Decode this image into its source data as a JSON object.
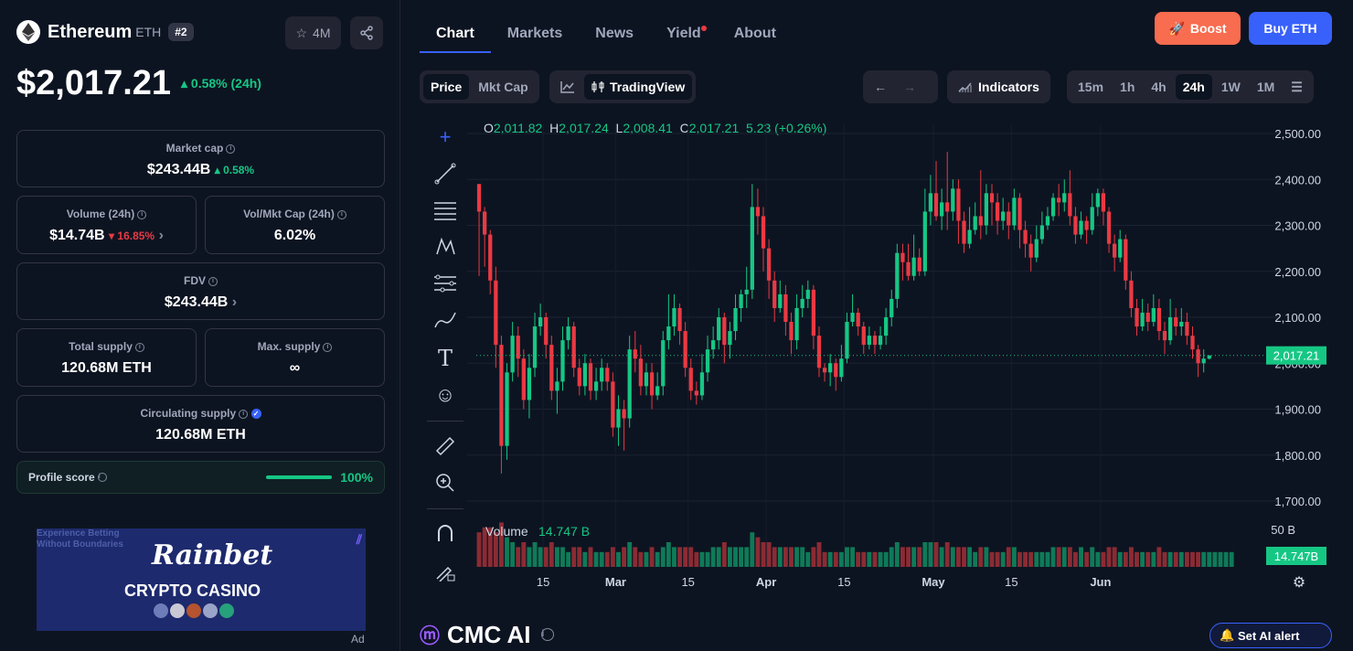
{
  "coin": {
    "name": "Ethereum",
    "symbol": "ETH",
    "rank": "#2",
    "watchlist_count": "4M",
    "price": "$2,017.21",
    "change_24h": "0.58% (24h)"
  },
  "stats": {
    "market_cap_label": "Market cap",
    "market_cap_value": "$243.44B",
    "market_cap_change": "0.58%",
    "volume_label": "Volume (24h)",
    "volume_value": "$14.74B",
    "volume_change": "16.85%",
    "vol_mkt_label": "Vol/Mkt Cap (24h)",
    "vol_mkt_value": "6.02%",
    "fdv_label": "FDV",
    "fdv_value": "$243.44B",
    "total_supply_label": "Total supply",
    "total_supply_value": "120.68M ETH",
    "max_supply_label": "Max. supply",
    "max_supply_value": "∞",
    "circ_supply_label": "Circulating supply",
    "circ_supply_value": "120.68M ETH",
    "profile_label": "Profile score",
    "profile_value": "100%",
    "profile_fraction": 1.0
  },
  "ad": {
    "line1": "Experience Betting Without Boundaries",
    "brand": "Rainbet",
    "tagline": "CRYPTO CASINO",
    "ad_label": "Ad"
  },
  "nav": {
    "tabs": [
      "Chart",
      "Markets",
      "News",
      "Yield",
      "About"
    ],
    "boost_label": "Boost",
    "buy_label": "Buy ETH"
  },
  "toolbar": {
    "price_label": "Price",
    "mktcap_label": "Mkt Cap",
    "tradingview_label": "TradingView",
    "indicators_label": "Indicators",
    "timeframes": [
      "15m",
      "1h",
      "4h",
      "24h",
      "1W",
      "1M"
    ],
    "active_timeframe": "24h"
  },
  "ohlc": {
    "o_label": "O",
    "o_value": "2,011.82",
    "h_label": "H",
    "h_value": "2,017.24",
    "l_label": "L",
    "l_value": "2,008.41",
    "c_label": "C",
    "c_value": "2,017.21",
    "change": "5.23 (+0.26%)"
  },
  "volume": {
    "label": "Volume",
    "value": "14.747 B",
    "axis_label": "50 B",
    "badge": "14.747B"
  },
  "footer": {
    "cmc_ai": "CMC AI",
    "alert_label": "Set AI alert"
  },
  "colors": {
    "up": "#16c784",
    "down": "#ea3943",
    "accent": "#3861fb",
    "boost": "#f86c4f",
    "bg": "#0d1421"
  },
  "chart_data": {
    "type": "candlestick",
    "ylim": [
      1700,
      2500
    ],
    "y_ticks": [
      "2,500.00",
      "2,400.00",
      "2,300.00",
      "2,200.00",
      "2,100.00",
      "2,000.00",
      "1,900.00",
      "1,800.00",
      "1,700.00"
    ],
    "x_ticks": [
      "15",
      "Mar",
      "15",
      "Apr",
      "15",
      "May",
      "15",
      "Jun"
    ],
    "last_price_label": "2,017.21",
    "candles": [
      [
        2390,
        2330,
        2390,
        2190
      ],
      [
        2330,
        2280,
        2340,
        2210
      ],
      [
        2280,
        2180,
        2290,
        2150
      ],
      [
        2180,
        2040,
        2210,
        1990
      ],
      [
        2040,
        1820,
        2060,
        1760
      ],
      [
        1820,
        1980,
        2000,
        1790
      ],
      [
        1980,
        2060,
        2090,
        1960
      ],
      [
        2060,
        2010,
        2080,
        1970
      ],
      [
        2010,
        1920,
        2030,
        1900
      ],
      [
        1920,
        1990,
        2020,
        1880
      ],
      [
        1990,
        2080,
        2110,
        1970
      ],
      [
        2080,
        2100,
        2130,
        2060
      ],
      [
        2100,
        2040,
        2110,
        2010
      ],
      [
        2040,
        1940,
        2060,
        1920
      ],
      [
        1940,
        1960,
        1990,
        1890
      ],
      [
        1960,
        2050,
        2080,
        1940
      ],
      [
        2050,
        2080,
        2100,
        2030
      ],
      [
        2080,
        1990,
        2090,
        1970
      ],
      [
        1990,
        1950,
        2010,
        1930
      ],
      [
        1950,
        2000,
        2020,
        1930
      ],
      [
        2000,
        1940,
        2010,
        1920
      ],
      [
        1940,
        1960,
        1990,
        1920
      ],
      [
        1960,
        1990,
        2010,
        1940
      ],
      [
        1990,
        1960,
        2000,
        1940
      ],
      [
        1960,
        1860,
        1980,
        1840
      ],
      [
        1860,
        1900,
        1930,
        1820
      ],
      [
        1900,
        1880,
        1920,
        1810
      ],
      [
        1880,
        2030,
        2060,
        1860
      ],
      [
        2030,
        2010,
        2070,
        1980
      ],
      [
        2010,
        1950,
        2040,
        1930
      ],
      [
        1950,
        1980,
        2000,
        1930
      ],
      [
        1980,
        1930,
        2000,
        1900
      ],
      [
        1930,
        1950,
        1980,
        1920
      ],
      [
        1950,
        2050,
        2070,
        1930
      ],
      [
        2050,
        2080,
        2150,
        2030
      ],
      [
        2080,
        2120,
        2150,
        2060
      ],
      [
        2120,
        2070,
        2130,
        2040
      ],
      [
        2070,
        1990,
        2090,
        1970
      ],
      [
        1990,
        1940,
        2010,
        1920
      ],
      [
        1940,
        1930,
        1960,
        1910
      ],
      [
        1930,
        1980,
        2020,
        1920
      ],
      [
        1980,
        2030,
        2060,
        1960
      ],
      [
        2030,
        2050,
        2080,
        2010
      ],
      [
        2050,
        2100,
        2120,
        2030
      ],
      [
        2100,
        2040,
        2110,
        2000
      ],
      [
        2040,
        2070,
        2090,
        2010
      ],
      [
        2070,
        2120,
        2150,
        2050
      ],
      [
        2120,
        2150,
        2160,
        2090
      ],
      [
        2150,
        2160,
        2210,
        2120
      ],
      [
        2160,
        2340,
        2390,
        2140
      ],
      [
        2340,
        2320,
        2380,
        2280
      ],
      [
        2320,
        2250,
        2340,
        2200
      ],
      [
        2250,
        2180,
        2270,
        2140
      ],
      [
        2180,
        2120,
        2200,
        2090
      ],
      [
        2120,
        2150,
        2180,
        2110
      ],
      [
        2150,
        2090,
        2170,
        2060
      ],
      [
        2090,
        2050,
        2110,
        2020
      ],
      [
        2050,
        2120,
        2150,
        2030
      ],
      [
        2120,
        2140,
        2170,
        2100
      ],
      [
        2140,
        2160,
        2180,
        2120
      ],
      [
        2160,
        2060,
        2170,
        2030
      ],
      [
        2060,
        1990,
        2080,
        1970
      ],
      [
        1990,
        1980,
        2000,
        1960
      ],
      [
        1980,
        2000,
        2020,
        1950
      ],
      [
        2000,
        1970,
        2010,
        1940
      ],
      [
        1970,
        2010,
        2040,
        1960
      ],
      [
        2010,
        2090,
        2110,
        2000
      ],
      [
        2090,
        2110,
        2150,
        2080
      ],
      [
        2110,
        2080,
        2120,
        2060
      ],
      [
        2080,
        2040,
        2090,
        2020
      ],
      [
        2040,
        2060,
        2080,
        2030
      ],
      [
        2060,
        2040,
        2070,
        2020
      ],
      [
        2040,
        2060,
        2080,
        2030
      ],
      [
        2060,
        2100,
        2120,
        2040
      ],
      [
        2100,
        2140,
        2160,
        2080
      ],
      [
        2140,
        2240,
        2260,
        2120
      ],
      [
        2240,
        2220,
        2260,
        2180
      ],
      [
        2220,
        2190,
        2260,
        2180
      ],
      [
        2190,
        2230,
        2280,
        2180
      ],
      [
        2230,
        2200,
        2250,
        2190
      ],
      [
        2200,
        2330,
        2380,
        2190
      ],
      [
        2330,
        2370,
        2410,
        2300
      ],
      [
        2370,
        2320,
        2440,
        2310
      ],
      [
        2320,
        2350,
        2380,
        2290
      ],
      [
        2350,
        2330,
        2460,
        2290
      ],
      [
        2330,
        2380,
        2400,
        2310
      ],
      [
        2380,
        2310,
        2400,
        2260
      ],
      [
        2310,
        2260,
        2330,
        2240
      ],
      [
        2260,
        2290,
        2340,
        2250
      ],
      [
        2290,
        2320,
        2350,
        2280
      ],
      [
        2320,
        2300,
        2420,
        2270
      ],
      [
        2300,
        2370,
        2390,
        2280
      ],
      [
        2370,
        2350,
        2390,
        2300
      ],
      [
        2350,
        2310,
        2370,
        2280
      ],
      [
        2310,
        2330,
        2360,
        2290
      ],
      [
        2330,
        2300,
        2350,
        2270
      ],
      [
        2300,
        2360,
        2380,
        2290
      ],
      [
        2360,
        2290,
        2370,
        2250
      ],
      [
        2290,
        2260,
        2310,
        2230
      ],
      [
        2260,
        2230,
        2280,
        2200
      ],
      [
        2230,
        2270,
        2300,
        2220
      ],
      [
        2270,
        2300,
        2330,
        2260
      ],
      [
        2300,
        2320,
        2340,
        2290
      ],
      [
        2320,
        2360,
        2370,
        2310
      ],
      [
        2360,
        2350,
        2390,
        2320
      ],
      [
        2350,
        2370,
        2400,
        2330
      ],
      [
        2370,
        2320,
        2420,
        2300
      ],
      [
        2320,
        2280,
        2340,
        2260
      ],
      [
        2280,
        2310,
        2330,
        2270
      ],
      [
        2310,
        2290,
        2320,
        2260
      ],
      [
        2290,
        2340,
        2370,
        2280
      ],
      [
        2340,
        2370,
        2380,
        2320
      ],
      [
        2370,
        2330,
        2380,
        2300
      ],
      [
        2330,
        2260,
        2340,
        2240
      ],
      [
        2260,
        2230,
        2280,
        2200
      ],
      [
        2230,
        2270,
        2290,
        2220
      ],
      [
        2270,
        2180,
        2280,
        2160
      ],
      [
        2180,
        2120,
        2200,
        2100
      ],
      [
        2120,
        2080,
        2140,
        2060
      ],
      [
        2080,
        2110,
        2140,
        2070
      ],
      [
        2110,
        2090,
        2130,
        2070
      ],
      [
        2090,
        2120,
        2150,
        2080
      ],
      [
        2120,
        2070,
        2140,
        2050
      ],
      [
        2070,
        2050,
        2090,
        2020
      ],
      [
        2050,
        2100,
        2140,
        2040
      ],
      [
        2100,
        2080,
        2120,
        2060
      ],
      [
        2080,
        2090,
        2120,
        2060
      ],
      [
        2090,
        2060,
        2110,
        2040
      ],
      [
        2060,
        2030,
        2080,
        2010
      ],
      [
        2030,
        2000,
        2040,
        1970
      ],
      [
        2000,
        2010,
        2030,
        1980
      ],
      [
        2010,
        2017,
        2017,
        2008
      ]
    ],
    "volumes": [
      0.7,
      0.8,
      0.8,
      0.7,
      0.9,
      0.6,
      0.5,
      0.4,
      0.5,
      0.4,
      0.5,
      0.4,
      0.4,
      0.5,
      0.4,
      0.4,
      0.3,
      0.4,
      0.4,
      0.3,
      0.4,
      0.3,
      0.3,
      0.3,
      0.4,
      0.3,
      0.4,
      0.5,
      0.4,
      0.3,
      0.3,
      0.4,
      0.3,
      0.4,
      0.5,
      0.4,
      0.4,
      0.4,
      0.4,
      0.3,
      0.3,
      0.3,
      0.4,
      0.4,
      0.5,
      0.4,
      0.4,
      0.4,
      0.4,
      0.7,
      0.6,
      0.5,
      0.5,
      0.4,
      0.4,
      0.4,
      0.4,
      0.4,
      0.4,
      0.3,
      0.4,
      0.5,
      0.3,
      0.3,
      0.3,
      0.3,
      0.4,
      0.4,
      0.3,
      0.3,
      0.3,
      0.3,
      0.3,
      0.3,
      0.4,
      0.5,
      0.4,
      0.4,
      0.4,
      0.4,
      0.5,
      0.5,
      0.5,
      0.4,
      0.5,
      0.4,
      0.4,
      0.4,
      0.4,
      0.3,
      0.4,
      0.4,
      0.3,
      0.3,
      0.3,
      0.4,
      0.4,
      0.3,
      0.3,
      0.3,
      0.3,
      0.3,
      0.3,
      0.4,
      0.4,
      0.4,
      0.4,
      0.3,
      0.4,
      0.3,
      0.4,
      0.3,
      0.3,
      0.4,
      0.4,
      0.3,
      0.3,
      0.4,
      0.3,
      0.3,
      0.3,
      0.3,
      0.4,
      0.3,
      0.3,
      0.3,
      0.3,
      0.3,
      0.3,
      0.3,
      0.3,
      0.3,
      0.3,
      0.3,
      0.3,
      0.3
    ]
  }
}
